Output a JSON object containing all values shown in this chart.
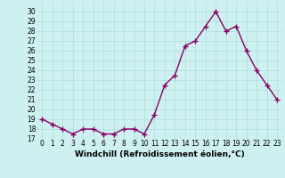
{
  "x": [
    0,
    1,
    2,
    3,
    4,
    5,
    6,
    7,
    8,
    9,
    10,
    11,
    12,
    13,
    14,
    15,
    16,
    17,
    18,
    19,
    20,
    21,
    22,
    23
  ],
  "y": [
    19,
    18.5,
    18,
    17.5,
    18,
    18,
    17.5,
    17.5,
    18,
    18,
    17.5,
    19.5,
    22.5,
    23.5,
    26.5,
    27,
    28.5,
    30,
    28,
    28.5,
    26,
    24,
    22.5,
    21
  ],
  "line_color": "#880066",
  "marker": "+",
  "bg_color": "#cff0f0",
  "grid_color": "#aadddd",
  "xlabel": "Windchill (Refroidissement éolien,°C)",
  "ylim": [
    17,
    31
  ],
  "xlim": [
    -0.5,
    23.5
  ],
  "yticks": [
    17,
    18,
    19,
    20,
    21,
    22,
    23,
    24,
    25,
    26,
    27,
    28,
    29,
    30
  ],
  "xticks": [
    0,
    1,
    2,
    3,
    4,
    5,
    6,
    7,
    8,
    9,
    10,
    11,
    12,
    13,
    14,
    15,
    16,
    17,
    18,
    19,
    20,
    21,
    22,
    23
  ],
  "label_fontsize": 6.5,
  "tick_fontsize": 5.5,
  "marker_size": 4,
  "line_width": 1
}
